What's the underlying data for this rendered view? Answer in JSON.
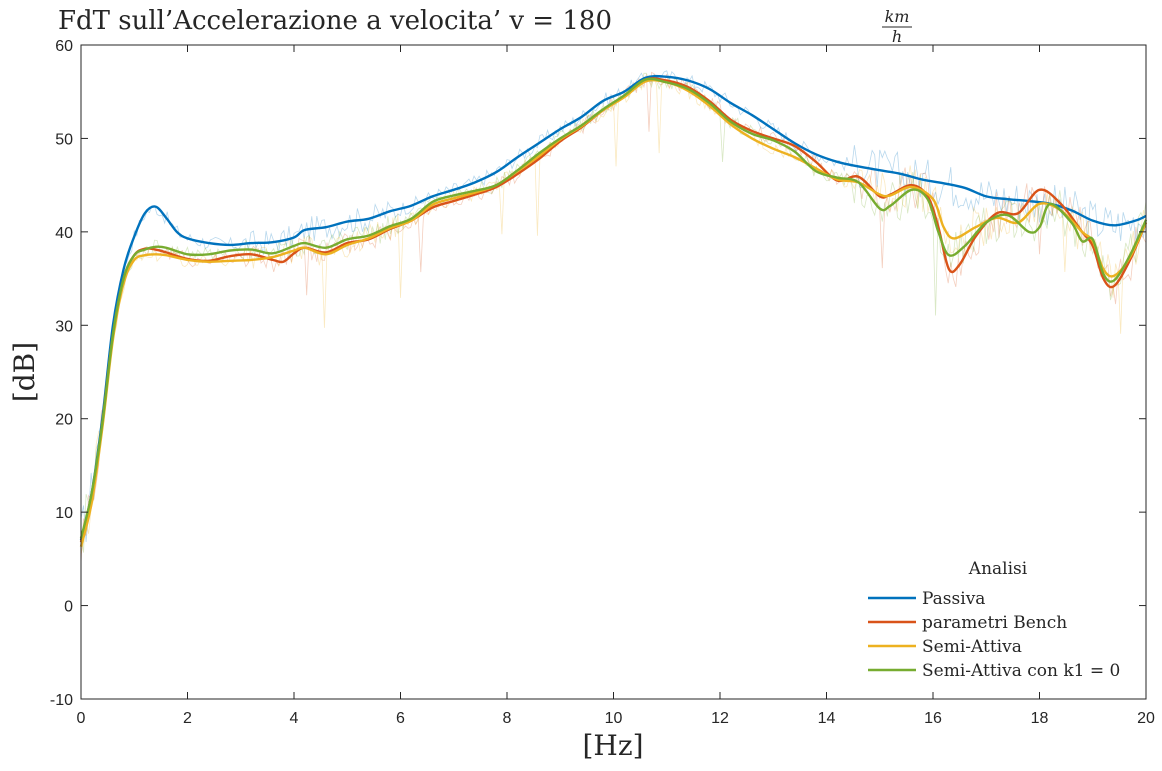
{
  "chart_data": {
    "type": "line",
    "title": "FdT sull’Accelerazione a velocita’ v = 180",
    "title_fraction": {
      "numerator": "km",
      "denominator": "h"
    },
    "xlabel": "[Hz]",
    "ylabel": "[dB]",
    "xlim": [
      0,
      20
    ],
    "ylim": [
      -10,
      60
    ],
    "xticks": [
      0,
      2,
      4,
      6,
      8,
      10,
      12,
      14,
      16,
      18,
      20
    ],
    "yticks": [
      -10,
      0,
      10,
      20,
      30,
      40,
      50,
      60
    ],
    "xtick_labels": [
      "0",
      "2",
      "4",
      "6",
      "8",
      "10",
      "12",
      "14",
      "16",
      "18",
      "20"
    ],
    "ytick_labels": [
      "-10",
      "0",
      "10",
      "20",
      "30",
      "40",
      "50",
      "60"
    ],
    "grid": false,
    "legend": {
      "title": "Analisi",
      "location": "bottom-right"
    },
    "series": [
      {
        "name": "Passiva",
        "color": "#0072BD",
        "points": [
          [
            0,
            7
          ],
          [
            0.2,
            12
          ],
          [
            0.4,
            20
          ],
          [
            0.6,
            30
          ],
          [
            0.8,
            36
          ],
          [
            1.0,
            39.5
          ],
          [
            1.2,
            42
          ],
          [
            1.4,
            42.7
          ],
          [
            1.6,
            41.5
          ],
          [
            1.8,
            40
          ],
          [
            2.0,
            39.3
          ],
          [
            2.4,
            38.8
          ],
          [
            2.8,
            38.6
          ],
          [
            3.2,
            38.8
          ],
          [
            3.6,
            38.9
          ],
          [
            4.0,
            39.4
          ],
          [
            4.2,
            40.2
          ],
          [
            4.6,
            40.5
          ],
          [
            5.0,
            41.1
          ],
          [
            5.4,
            41.4
          ],
          [
            5.8,
            42.2
          ],
          [
            6.2,
            42.8
          ],
          [
            6.6,
            43.8
          ],
          [
            7.0,
            44.5
          ],
          [
            7.4,
            45.3
          ],
          [
            7.8,
            46.4
          ],
          [
            8.2,
            48.0
          ],
          [
            8.6,
            49.5
          ],
          [
            9.0,
            51.0
          ],
          [
            9.4,
            52.3
          ],
          [
            9.8,
            54.0
          ],
          [
            10.2,
            55.0
          ],
          [
            10.6,
            56.5
          ],
          [
            11.0,
            56.6
          ],
          [
            11.4,
            56.2
          ],
          [
            11.8,
            55.3
          ],
          [
            12.2,
            53.8
          ],
          [
            12.6,
            52.5
          ],
          [
            13.0,
            51.0
          ],
          [
            13.4,
            49.5
          ],
          [
            13.8,
            48.3
          ],
          [
            14.2,
            47.5
          ],
          [
            14.6,
            47.0
          ],
          [
            15.0,
            46.6
          ],
          [
            15.4,
            46.2
          ],
          [
            15.8,
            45.6
          ],
          [
            16.2,
            45.2
          ],
          [
            16.6,
            44.7
          ],
          [
            17.0,
            43.8
          ],
          [
            17.4,
            43.5
          ],
          [
            17.8,
            43.3
          ],
          [
            18.2,
            43.0
          ],
          [
            18.6,
            42.3
          ],
          [
            19.0,
            41.2
          ],
          [
            19.4,
            40.7
          ],
          [
            19.8,
            41.2
          ],
          [
            20.0,
            41.7
          ]
        ]
      },
      {
        "name": "parametri Bench",
        "color": "#D95319",
        "points": [
          [
            0,
            6.8
          ],
          [
            0.2,
            11.5
          ],
          [
            0.4,
            19.5
          ],
          [
            0.6,
            29
          ],
          [
            0.8,
            35
          ],
          [
            1.0,
            37.5
          ],
          [
            1.2,
            38.2
          ],
          [
            1.4,
            38.1
          ],
          [
            1.6,
            37.8
          ],
          [
            2.0,
            37.1
          ],
          [
            2.4,
            36.9
          ],
          [
            2.8,
            37.4
          ],
          [
            3.2,
            37.6
          ],
          [
            3.6,
            37.0
          ],
          [
            3.8,
            36.8
          ],
          [
            4.0,
            37.7
          ],
          [
            4.2,
            38.3
          ],
          [
            4.6,
            37.8
          ],
          [
            5.0,
            38.8
          ],
          [
            5.4,
            39.2
          ],
          [
            5.8,
            40.3
          ],
          [
            6.2,
            41.2
          ],
          [
            6.6,
            42.6
          ],
          [
            7.0,
            43.3
          ],
          [
            7.4,
            44.0
          ],
          [
            7.8,
            44.8
          ],
          [
            8.2,
            46.2
          ],
          [
            8.6,
            47.8
          ],
          [
            9.0,
            49.7
          ],
          [
            9.4,
            51.2
          ],
          [
            9.8,
            53.0
          ],
          [
            10.2,
            54.5
          ],
          [
            10.6,
            56.3
          ],
          [
            11.0,
            56.2
          ],
          [
            11.4,
            55.5
          ],
          [
            11.8,
            54.0
          ],
          [
            12.2,
            52.0
          ],
          [
            12.6,
            50.8
          ],
          [
            13.0,
            50.0
          ],
          [
            13.4,
            49.2
          ],
          [
            13.8,
            47.5
          ],
          [
            14.2,
            45.5
          ],
          [
            14.6,
            45.9
          ],
          [
            15.0,
            43.8
          ],
          [
            15.2,
            44.0
          ],
          [
            15.6,
            45.0
          ],
          [
            15.9,
            43.8
          ],
          [
            16.1,
            40.5
          ],
          [
            16.3,
            36.0
          ],
          [
            16.5,
            36.5
          ],
          [
            16.8,
            39.5
          ],
          [
            17.2,
            42.0
          ],
          [
            17.6,
            42.0
          ],
          [
            18.0,
            44.5
          ],
          [
            18.4,
            43.0
          ],
          [
            18.8,
            40.0
          ],
          [
            19.0,
            38.5
          ],
          [
            19.2,
            35.0
          ],
          [
            19.4,
            34.2
          ],
          [
            19.7,
            37.0
          ],
          [
            20.0,
            41.0
          ]
        ]
      },
      {
        "name": "Semi-Attiva",
        "color": "#EDB120",
        "points": [
          [
            0,
            6.3
          ],
          [
            0.2,
            11
          ],
          [
            0.4,
            19
          ],
          [
            0.6,
            28.5
          ],
          [
            0.8,
            34.5
          ],
          [
            1.0,
            37
          ],
          [
            1.2,
            37.5
          ],
          [
            1.4,
            37.6
          ],
          [
            1.6,
            37.5
          ],
          [
            2.0,
            37.0
          ],
          [
            2.4,
            36.8
          ],
          [
            2.8,
            36.9
          ],
          [
            3.2,
            37.0
          ],
          [
            3.6,
            37.3
          ],
          [
            4.0,
            38.0
          ],
          [
            4.2,
            38.3
          ],
          [
            4.6,
            37.6
          ],
          [
            5.0,
            38.6
          ],
          [
            5.4,
            39.3
          ],
          [
            5.8,
            40.4
          ],
          [
            6.2,
            41.2
          ],
          [
            6.6,
            42.9
          ],
          [
            7.0,
            43.6
          ],
          [
            7.4,
            44.2
          ],
          [
            7.8,
            45.0
          ],
          [
            8.2,
            46.5
          ],
          [
            8.6,
            48.1
          ],
          [
            9.0,
            49.9
          ],
          [
            9.4,
            51.3
          ],
          [
            9.8,
            53.0
          ],
          [
            10.2,
            54.4
          ],
          [
            10.6,
            56.1
          ],
          [
            11.0,
            56.0
          ],
          [
            11.4,
            55.1
          ],
          [
            11.8,
            53.5
          ],
          [
            12.2,
            51.5
          ],
          [
            12.6,
            50.0
          ],
          [
            13.0,
            48.9
          ],
          [
            13.4,
            48.0
          ],
          [
            13.8,
            46.8
          ],
          [
            14.2,
            45.6
          ],
          [
            14.6,
            45.3
          ],
          [
            15.0,
            44.0
          ],
          [
            15.2,
            43.9
          ],
          [
            15.6,
            44.8
          ],
          [
            16.0,
            43.5
          ],
          [
            16.2,
            40.5
          ],
          [
            16.4,
            39.3
          ],
          [
            16.8,
            40.5
          ],
          [
            17.2,
            41.5
          ],
          [
            17.6,
            41.0
          ],
          [
            18.0,
            43.0
          ],
          [
            18.4,
            42.3
          ],
          [
            18.8,
            40.0
          ],
          [
            19.0,
            39.0
          ],
          [
            19.2,
            36.0
          ],
          [
            19.4,
            35.3
          ],
          [
            19.7,
            37.3
          ],
          [
            20.0,
            41.0
          ]
        ]
      },
      {
        "name": "Semi-Attiva con k1 = 0",
        "color": "#77AC30",
        "points": [
          [
            0,
            7.2
          ],
          [
            0.2,
            12
          ],
          [
            0.4,
            19.5
          ],
          [
            0.6,
            29
          ],
          [
            0.8,
            35
          ],
          [
            1.0,
            37.5
          ],
          [
            1.2,
            38.1
          ],
          [
            1.4,
            38.4
          ],
          [
            1.6,
            38.3
          ],
          [
            2.0,
            37.6
          ],
          [
            2.4,
            37.6
          ],
          [
            2.8,
            38.0
          ],
          [
            3.2,
            38.1
          ],
          [
            3.6,
            37.7
          ],
          [
            4.0,
            38.5
          ],
          [
            4.2,
            38.8
          ],
          [
            4.6,
            38.3
          ],
          [
            5.0,
            39.2
          ],
          [
            5.4,
            39.6
          ],
          [
            5.8,
            40.6
          ],
          [
            6.2,
            41.4
          ],
          [
            6.6,
            43.2
          ],
          [
            7.0,
            43.9
          ],
          [
            7.4,
            44.4
          ],
          [
            7.8,
            45.0
          ],
          [
            8.2,
            46.6
          ],
          [
            8.6,
            48.4
          ],
          [
            9.0,
            50.0
          ],
          [
            9.4,
            51.4
          ],
          [
            9.8,
            53.1
          ],
          [
            10.2,
            54.6
          ],
          [
            10.6,
            56.3
          ],
          [
            11.0,
            56.0
          ],
          [
            11.4,
            55.3
          ],
          [
            11.8,
            53.8
          ],
          [
            12.2,
            51.8
          ],
          [
            12.6,
            50.5
          ],
          [
            13.0,
            49.8
          ],
          [
            13.4,
            48.6
          ],
          [
            13.8,
            46.5
          ],
          [
            14.2,
            45.8
          ],
          [
            14.6,
            45.3
          ],
          [
            15.0,
            42.5
          ],
          [
            15.2,
            42.8
          ],
          [
            15.6,
            44.5
          ],
          [
            15.9,
            43.5
          ],
          [
            16.1,
            40.0
          ],
          [
            16.3,
            37.5
          ],
          [
            16.6,
            38.5
          ],
          [
            17.0,
            41.0
          ],
          [
            17.4,
            41.8
          ],
          [
            17.8,
            40.0
          ],
          [
            18.0,
            40.5
          ],
          [
            18.2,
            43.0
          ],
          [
            18.6,
            41.0
          ],
          [
            18.8,
            39.0
          ],
          [
            19.0,
            39.2
          ],
          [
            19.2,
            35.5
          ],
          [
            19.4,
            34.8
          ],
          [
            19.7,
            37.5
          ],
          [
            20.0,
            41.3
          ]
        ]
      }
    ]
  }
}
